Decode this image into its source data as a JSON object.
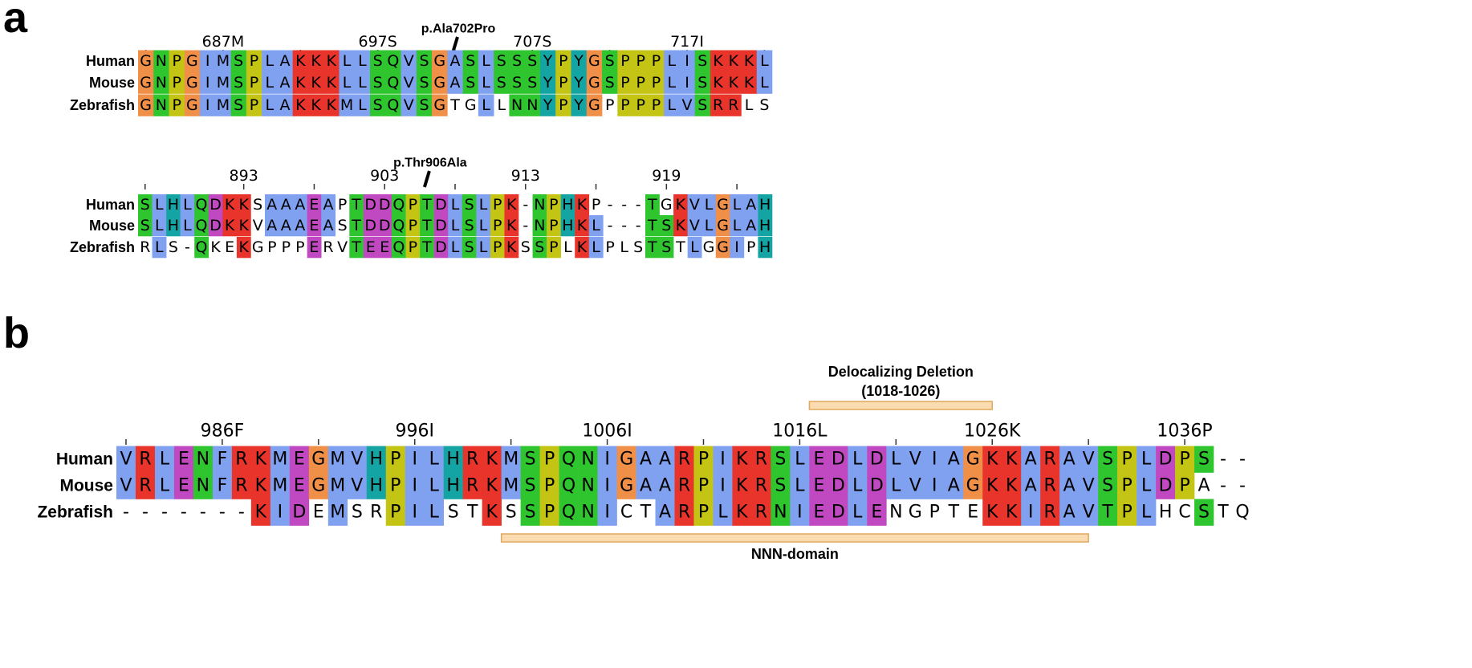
{
  "panels": [
    {
      "label": "a",
      "blocks": [
        {
          "ruler": [
            "687M",
            "697S",
            "707S",
            "717I"
          ],
          "annotation": "p.Ala702Pro",
          "rows": [
            {
              "name": "Human",
              "sequence": "GNPGIMSPLAKKKLLSQVSGASLSSSYPYGSPPPLISKKKL"
            },
            {
              "name": "Mouse",
              "sequence": "GNPGIMSPLAKKKLLSQVSGASLSSSYPYGSPPPLISKKKL"
            },
            {
              "name": "Zebrafish",
              "sequence": "GNPGIMSPLAKKKMLSQVSGTGLLNNYPYGPPPPLVSRRLS"
            }
          ]
        },
        {
          "ruler": [
            "893",
            "903",
            "913",
            "919"
          ],
          "annotation": "p.Thr906Ala",
          "rows": [
            {
              "name": "Human",
              "sequence": "SLHLQDKKSAAAEAPTDDQPTDLSLPK-NPHKP---TGKVLGLAH"
            },
            {
              "name": "Mouse",
              "sequence": "SLHLQDKKVAAAEASTDDQPTDLSLPK-NPHKL---TSKVLGLAH"
            },
            {
              "name": "Zebrafish",
              "sequence": "RLS-QKEKGPPPERVTEEQPTDLSLPKSSPLKLPLSTSTLGGIPH"
            }
          ]
        }
      ]
    },
    {
      "label": "b",
      "blocks": [
        {
          "ruler": [
            "986F",
            "996I",
            "1006I",
            "1016L",
            "1026K",
            "1036P"
          ],
          "features": [
            {
              "label": "Delocalizing Deletion",
              "sublabel": "(1018-1026)"
            },
            {
              "label": "NNN-domain"
            }
          ],
          "rows": [
            {
              "name": "Human",
              "sequence": "VRLENFRKMEGMVHPILHRKMSPQNIGAARPIKRSLEDLDLVIAGKKARAVSPLDPS--"
            },
            {
              "name": "Mouse",
              "sequence": "VRLENFRKMEGMVHPILHRKMSPQNIGAARPIKRSLEDLDLVIAGKKARAVSPLDPA--"
            },
            {
              "name": "Zebrafish",
              "sequence": "-------KIDEMSRPILSTKSSPQNICTARPLKRNIEDLENGPTEKKIRAVTPLHCSTQ"
            }
          ]
        }
      ]
    }
  ]
}
